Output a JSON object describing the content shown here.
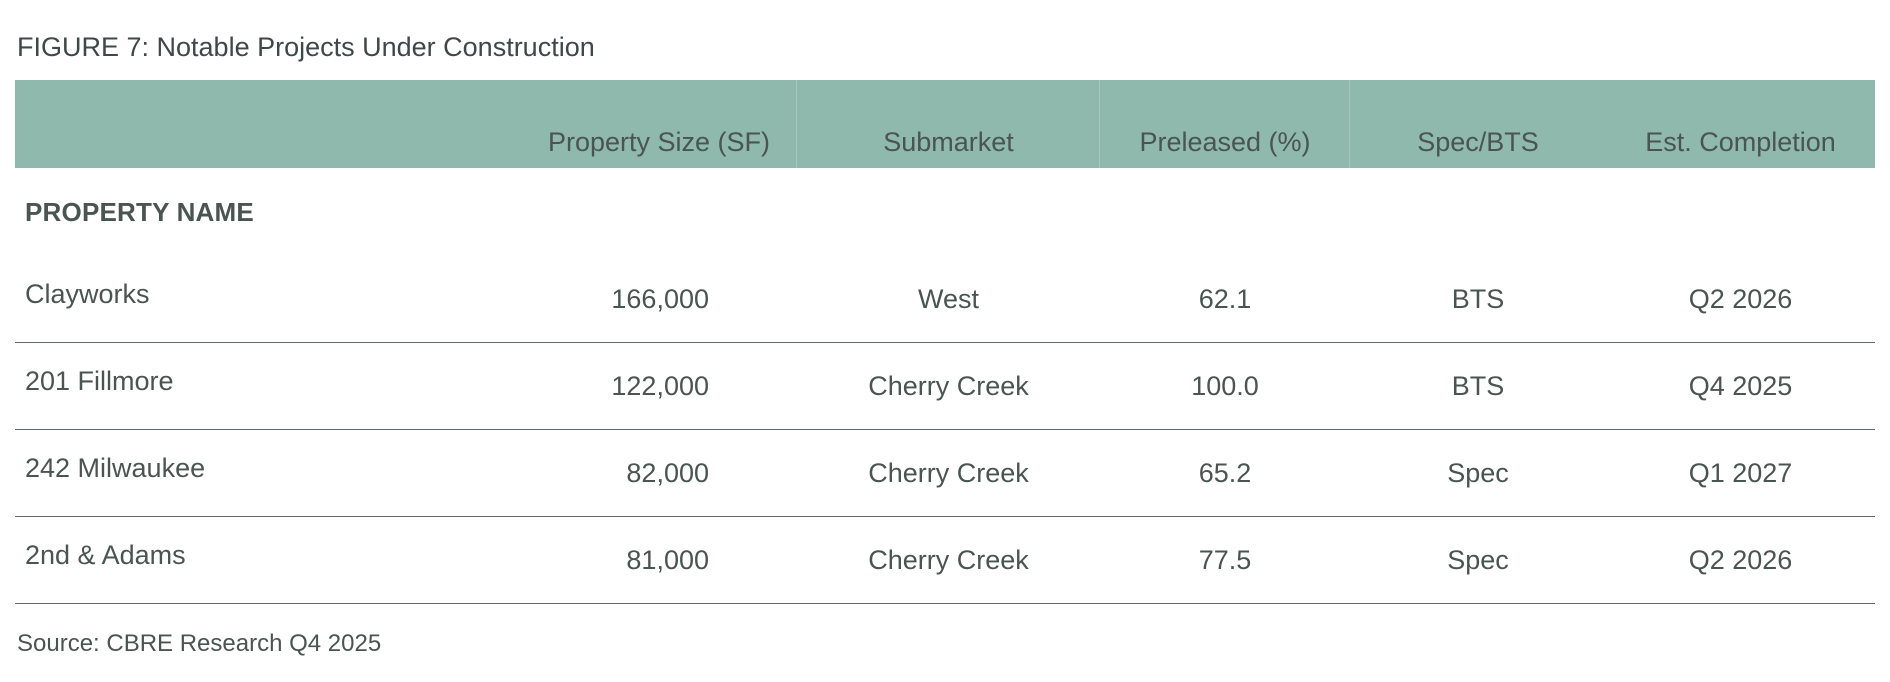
{
  "figure_title": "FIGURE 7: Notable Projects Under Construction",
  "table": {
    "headers": [
      "",
      "Property Size (SF)",
      "Submarket",
      "Preleased (%)",
      "Spec/BTS",
      "Est. Completion"
    ],
    "section_label": "PROPERTY NAME",
    "rows": [
      {
        "name": "Clayworks",
        "size": "166,000",
        "submarket": "West",
        "preleased": "62.1",
        "spec_bts": "BTS",
        "completion": "Q2 2026"
      },
      {
        "name": "201 Fillmore",
        "size": "122,000",
        "submarket": "Cherry Creek",
        "preleased": "100.0",
        "spec_bts": "BTS",
        "completion": "Q4 2025"
      },
      {
        "name": "242 Milwaukee",
        "size": "82,000",
        "submarket": "Cherry Creek",
        "preleased": "65.2",
        "spec_bts": "Spec",
        "completion": "Q1 2027"
      },
      {
        "name": "2nd & Adams",
        "size": "81,000",
        "submarket": "Cherry Creek",
        "preleased": "77.5",
        "spec_bts": "Spec",
        "completion": "Q2 2026"
      }
    ]
  },
  "source": "Source: CBRE Research Q4 2025",
  "colors": {
    "header_bg": "#8fb9ad",
    "text": "#4a5450",
    "rule": "#5f6b68"
  }
}
